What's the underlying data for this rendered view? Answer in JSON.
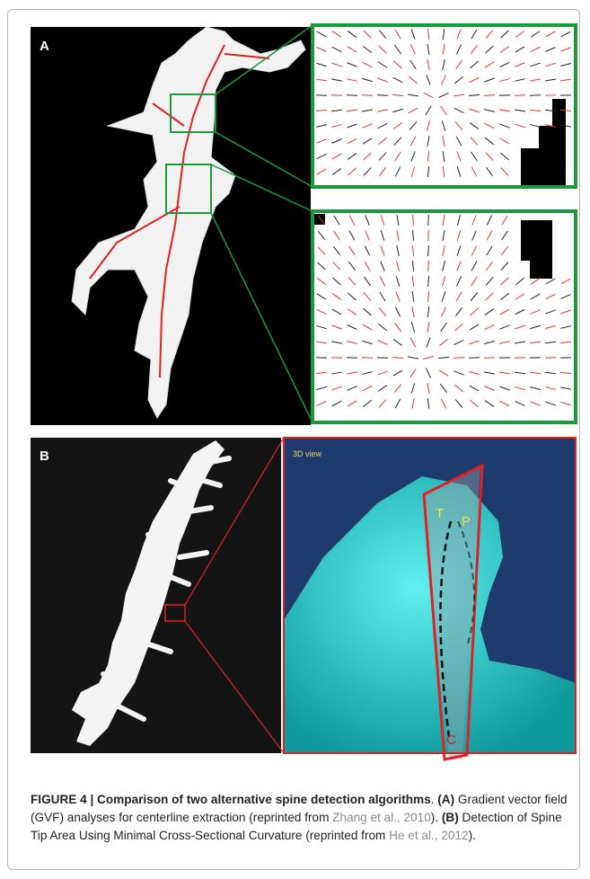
{
  "panels": {
    "a": {
      "label": "A"
    },
    "b": {
      "label": "B",
      "view_label": "3D view",
      "points": [
        "T",
        "P",
        "C"
      ]
    }
  },
  "caption": {
    "title": "FIGURE 4 | Comparison of two alternative spine detection algorithms",
    "parts": [
      ".",
      "(A)",
      " Gradient vector field (GVF) analyses for centerline extraction (reprinted from ",
      "Zhang et al., 2010",
      "). ",
      "(B)",
      " Detection of Spine Tip Area Using Minimal Cross-Sectional Curvature (reprinted from ",
      "He et al., 2012",
      ")."
    ]
  }
}
